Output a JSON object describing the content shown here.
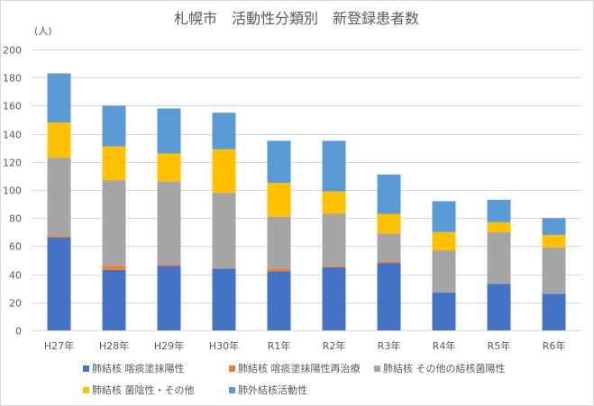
{
  "chart_data": {
    "type": "bar",
    "stacked": true,
    "title": "札幌市　活動性分類別　新登録患者数",
    "ylabel": "(人)",
    "xlabel": "",
    "ylim": [
      0,
      200
    ],
    "yticks": [
      0,
      20,
      40,
      60,
      80,
      100,
      120,
      140,
      160,
      180,
      200
    ],
    "grid": true,
    "legend": "bottom",
    "categories": [
      "H27年",
      "H28年",
      "H29年",
      "H30年",
      "R1年",
      "R2年",
      "R3年",
      "R4年",
      "R5年",
      "R6年"
    ],
    "series": [
      {
        "name": "肺結核 喀痰塗抹陽性",
        "color": "#4472C4",
        "values": [
          66,
          43,
          46,
          44,
          42,
          45,
          48,
          27,
          33,
          26
        ]
      },
      {
        "name": "肺結核 喀痰塗抹陽性再治療",
        "color": "#ED7D31",
        "values": [
          1,
          3,
          1,
          0,
          2,
          1,
          1,
          0,
          0,
          0
        ]
      },
      {
        "name": "肺結核 その他の結核菌陽性",
        "color": "#A5A5A5",
        "values": [
          56,
          61,
          59,
          54,
          37,
          37,
          20,
          30,
          37,
          33
        ]
      },
      {
        "name": "肺結核 菌陰性・その他",
        "color": "#FFC000",
        "values": [
          25,
          24,
          20,
          31,
          24,
          16,
          14,
          13,
          7,
          9
        ]
      },
      {
        "name": "肺外結核活動性",
        "color": "#5B9BD5",
        "values": [
          35,
          29,
          32,
          26,
          30,
          36,
          28,
          22,
          16,
          12
        ]
      }
    ]
  }
}
